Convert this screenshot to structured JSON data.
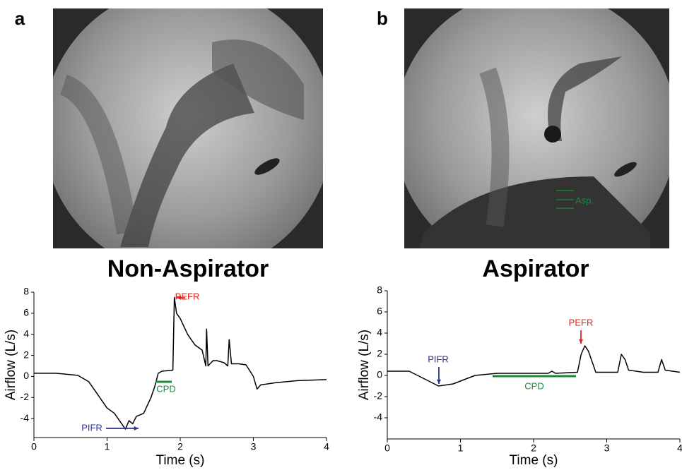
{
  "chart_data": [
    {
      "type": "line",
      "panel_label": "a",
      "title": "Non-Aspirator",
      "x_label": "Time (s)",
      "y_label": "Airflow (L/s)",
      "x": [
        0,
        0.3,
        0.6,
        0.75,
        0.9,
        1.0,
        1.1,
        1.15,
        1.2,
        1.25,
        1.3,
        1.35,
        1.4,
        1.5,
        1.6,
        1.65,
        1.7,
        1.75,
        1.9,
        1.92,
        1.95,
        2.0,
        2.1,
        2.2,
        2.3,
        2.35,
        2.36,
        2.38,
        2.45,
        2.5,
        2.6,
        2.65,
        2.67,
        2.7,
        2.8,
        2.9,
        3.0,
        3.05,
        3.1,
        3.3,
        3.6,
        4.0
      ],
      "values": [
        0.3,
        0.3,
        0.1,
        -0.5,
        -2,
        -3,
        -3.5,
        -4,
        -4.5,
        -5,
        -4.2,
        -4.5,
        -3.8,
        -3.5,
        -2,
        -1,
        0.3,
        0.5,
        0.6,
        7.5,
        6,
        5.5,
        4,
        3,
        2.5,
        1,
        4.5,
        1,
        1.5,
        1.5,
        1.3,
        1,
        3.5,
        1.2,
        1.2,
        1.1,
        0,
        -1.2,
        -0.8,
        -0.6,
        -0.4,
        -0.3
      ],
      "color": "#000000",
      "xlim": [
        0,
        4
      ],
      "ylim": [
        -5.8,
        8
      ],
      "xticks": [
        0,
        1,
        2,
        3,
        4
      ],
      "yticks": [
        -4,
        -2,
        0,
        2,
        4,
        6,
        8
      ],
      "annotations": [
        {
          "text": "PEFR",
          "color": "#e8231c"
        },
        {
          "text": "PIFR",
          "color": "#2e3192"
        },
        {
          "text": "CPD",
          "color": "#1a8a3a"
        }
      ]
    },
    {
      "type": "line",
      "panel_label": "b",
      "title": "Aspirator",
      "x_label": "Time (s)",
      "y_label": "Airflow (L/s)",
      "image_annotation": "Asp.",
      "x": [
        0,
        0.3,
        0.5,
        0.7,
        0.9,
        1.2,
        1.5,
        2.0,
        2.2,
        2.25,
        2.3,
        2.6,
        2.65,
        2.7,
        2.75,
        2.85,
        3.15,
        3.2,
        3.25,
        3.3,
        3.5,
        3.7,
        3.75,
        3.8,
        4.0
      ],
      "values": [
        0.4,
        0.4,
        -0.3,
        -1,
        -0.8,
        0,
        0.2,
        0.2,
        0.2,
        0.4,
        0.2,
        0.3,
        2,
        2.8,
        2.3,
        0.3,
        0.3,
        2,
        1.5,
        0.5,
        0.3,
        0.3,
        1.5,
        0.5,
        0.3
      ],
      "color": "#000000",
      "xlim": [
        0,
        4
      ],
      "ylim": [
        -6,
        8
      ],
      "xticks": [
        0,
        1,
        2,
        3,
        4
      ],
      "yticks": [
        -4,
        -2,
        0,
        2,
        4,
        6,
        8
      ],
      "annotations": [
        {
          "text": "PIFR",
          "color": "#2e3192"
        },
        {
          "text": "PEFR",
          "color": "#e8231c"
        },
        {
          "text": "CPD",
          "color": "#1a8a3a"
        }
      ]
    }
  ]
}
